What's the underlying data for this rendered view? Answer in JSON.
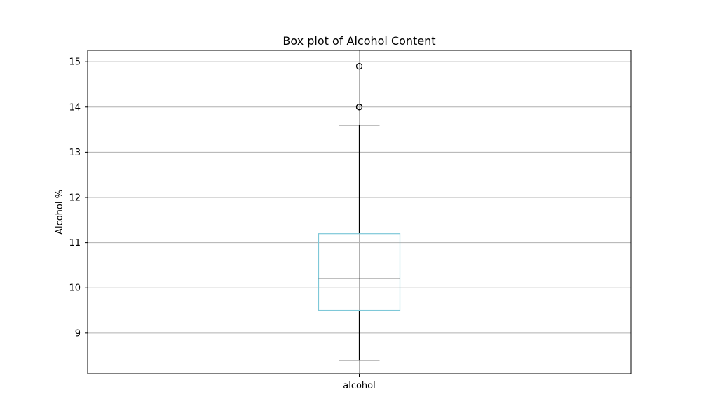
{
  "chart_data": {
    "type": "box",
    "title": "Box plot of Alcohol Content",
    "ylabel": "Alcohol %",
    "xlabel": "",
    "categories": [
      "alcohol"
    ],
    "yticks": [
      9,
      10,
      11,
      12,
      13,
      14,
      15
    ],
    "ylim": [
      8.1,
      15.25
    ],
    "grid": true,
    "box": {
      "name": "alcohol",
      "whisker_low": 8.4,
      "q1": 9.5,
      "median": 10.2,
      "q3": 11.2,
      "whisker_high": 13.6,
      "outliers": [
        14.0,
        14.0,
        14.9
      ]
    },
    "colors": {
      "box": "#7ec8d8",
      "median": "#000000",
      "whisker": "#000000",
      "grid": "#b0b0b0",
      "outlier_edge": "#000000"
    }
  }
}
